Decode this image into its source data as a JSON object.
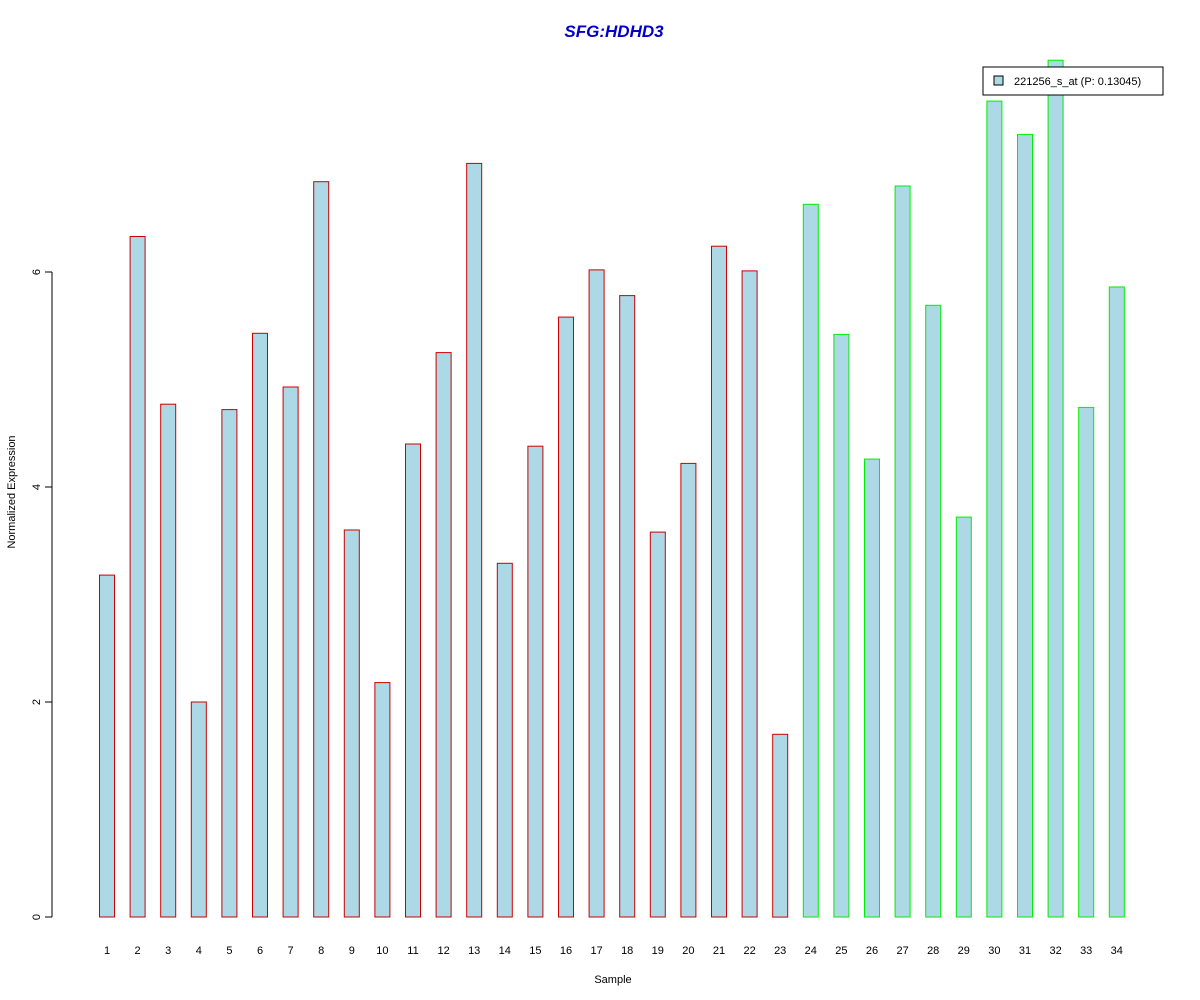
{
  "chart_data": {
    "type": "bar",
    "title": "SFG:HDHD3",
    "xlabel": "Sample",
    "ylabel": "Normalized Expression",
    "ylim": [
      0,
      8
    ],
    "yticks": [
      0,
      2,
      4,
      6
    ],
    "grid": false,
    "legend_position": "top-right",
    "legend_label": "221256_s_at (P: 0.13045)",
    "categories": [
      "1",
      "2",
      "3",
      "4",
      "5",
      "6",
      "7",
      "8",
      "9",
      "10",
      "11",
      "12",
      "13",
      "14",
      "15",
      "16",
      "17",
      "18",
      "19",
      "20",
      "21",
      "22",
      "23",
      "24",
      "25",
      "26",
      "27",
      "28",
      "29",
      "30",
      "31",
      "32",
      "33",
      "34"
    ],
    "values": [
      3.18,
      6.33,
      4.77,
      2.0,
      4.72,
      5.43,
      4.93,
      6.84,
      3.6,
      2.18,
      4.4,
      5.25,
      7.01,
      3.29,
      4.38,
      5.58,
      6.02,
      5.78,
      3.58,
      4.22,
      6.24,
      6.01,
      1.7,
      6.63,
      5.42,
      4.26,
      6.8,
      5.69,
      3.72,
      7.59,
      7.28,
      7.97,
      4.74,
      5.86
    ],
    "series": [
      {
        "group": "1-23",
        "count": 23,
        "border_color": "#cc0000"
      },
      {
        "group": "24-34",
        "count": 11,
        "border_color": "#00ee00"
      }
    ],
    "fill_color": "#add8e6",
    "title_color": "#0000cc"
  }
}
